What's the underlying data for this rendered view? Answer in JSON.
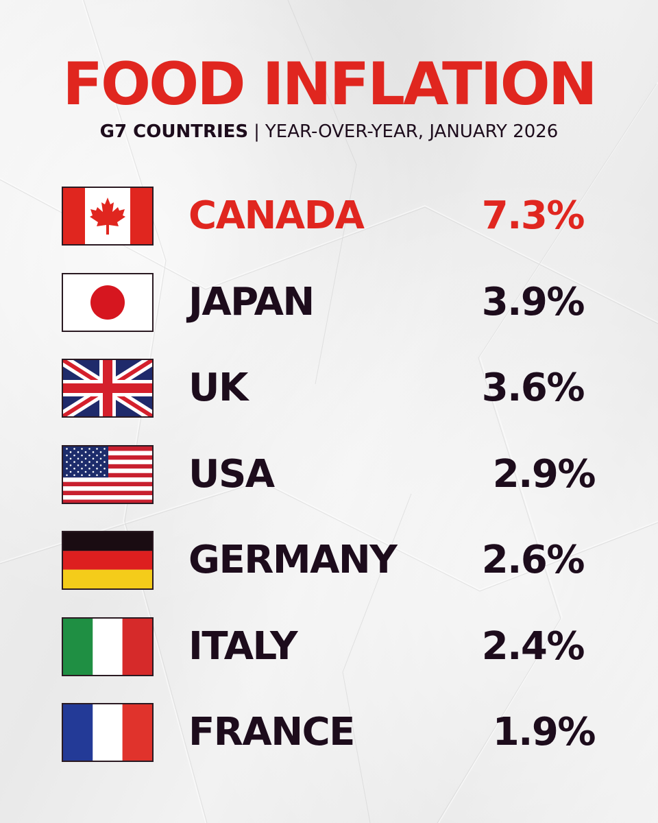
{
  "title": "FOOD INFLATION",
  "subtitle": {
    "strong": "G7 COUNTRIES",
    "separator": "|",
    "rest": "YEAR-OVER-YEAR, JANUARY 2026"
  },
  "colors": {
    "accent": "#e0261f",
    "text": "#1d0c1c",
    "background": "#efefef"
  },
  "chart_data": {
    "type": "table",
    "title": "FOOD INFLATION",
    "subtitle": "G7 COUNTRIES | YEAR-OVER-YEAR, JANUARY 2026",
    "highlight": "CANADA",
    "rows": [
      {
        "country": "CANADA",
        "value": 7.3,
        "label": "7.3%",
        "flag": "canada-flag-icon"
      },
      {
        "country": "JAPAN",
        "value": 3.9,
        "label": "3.9%",
        "flag": "japan-flag-icon"
      },
      {
        "country": "UK",
        "value": 3.6,
        "label": "3.6%",
        "flag": "uk-flag-icon"
      },
      {
        "country": "USA",
        "value": 2.9,
        "label": "2.9%",
        "flag": "usa-flag-icon"
      },
      {
        "country": "GERMANY",
        "value": 2.6,
        "label": "2.6%",
        "flag": "germany-flag-icon"
      },
      {
        "country": "ITALY",
        "value": 2.4,
        "label": "2.4%",
        "flag": "italy-flag-icon"
      },
      {
        "country": "FRANCE",
        "value": 1.9,
        "label": "1.9%",
        "flag": "france-flag-icon"
      }
    ]
  }
}
